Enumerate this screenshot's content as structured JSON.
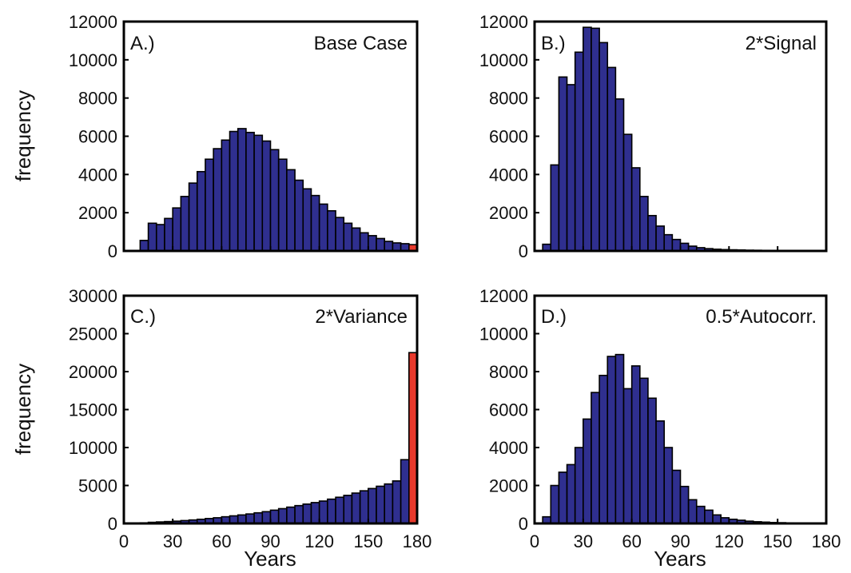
{
  "colors": {
    "bar": "#2f2f8f",
    "highlight": "#e8392c",
    "bar_edge": "#000000"
  },
  "chart_data": [
    {
      "type": "bar",
      "panel_label": "A.)",
      "title": "Base Case",
      "xlabel": "",
      "ylabel": "frequency",
      "bin_width": 5,
      "xlim": [
        0,
        180
      ],
      "ylim": [
        0,
        12000
      ],
      "yticks": [
        "0",
        "2000",
        "4000",
        "6000",
        "8000",
        "10000",
        "12000"
      ],
      "xticks": [],
      "bin_starts": [
        10,
        15,
        20,
        25,
        30,
        35,
        40,
        45,
        50,
        55,
        60,
        65,
        70,
        75,
        80,
        85,
        90,
        95,
        100,
        105,
        110,
        115,
        120,
        125,
        130,
        135,
        140,
        145,
        150,
        155,
        160,
        165,
        170,
        175
      ],
      "values": [
        550,
        1450,
        1380,
        1700,
        2250,
        2850,
        3550,
        4150,
        4800,
        5350,
        5800,
        6250,
        6400,
        6200,
        6050,
        5750,
        5300,
        4800,
        4250,
        3700,
        3250,
        2900,
        2450,
        2100,
        1750,
        1450,
        1200,
        950,
        800,
        650,
        500,
        420,
        380,
        330
      ],
      "highlight_index": 33
    },
    {
      "type": "bar",
      "panel_label": "B.)",
      "title": "2*Signal",
      "xlabel": "",
      "ylabel": "",
      "bin_width": 5,
      "xlim": [
        0,
        180
      ],
      "ylim": [
        0,
        12000
      ],
      "yticks": [
        "0",
        "2000",
        "4000",
        "6000",
        "8000",
        "10000",
        "12000"
      ],
      "xticks": [],
      "bin_starts": [
        5,
        10,
        15,
        20,
        25,
        30,
        35,
        40,
        45,
        50,
        55,
        60,
        65,
        70,
        75,
        80,
        85,
        90,
        95,
        100,
        105,
        110,
        115,
        120,
        125,
        130,
        135,
        140,
        145,
        150,
        155,
        160,
        165,
        170,
        175
      ],
      "values": [
        350,
        4500,
        9100,
        8700,
        10400,
        11700,
        11650,
        10900,
        9600,
        7950,
        6100,
        4350,
        2850,
        1850,
        1300,
        850,
        600,
        400,
        250,
        170,
        120,
        90,
        70,
        60,
        50,
        40,
        35,
        30,
        25,
        20,
        20,
        15,
        15,
        10,
        10
      ],
      "highlight_index": null
    },
    {
      "type": "bar",
      "panel_label": "C.)",
      "title": "2*Variance",
      "xlabel": "Years",
      "ylabel": "frequency",
      "bin_width": 5,
      "xlim": [
        0,
        180
      ],
      "ylim": [
        0,
        30000
      ],
      "yticks": [
        "0",
        "5000",
        "10000",
        "15000",
        "20000",
        "25000",
        "30000"
      ],
      "xticks": [
        "0",
        "30",
        "60",
        "90",
        "120",
        "150",
        "180"
      ],
      "bin_starts": [
        10,
        15,
        20,
        25,
        30,
        35,
        40,
        45,
        50,
        55,
        60,
        65,
        70,
        75,
        80,
        85,
        90,
        95,
        100,
        105,
        110,
        115,
        120,
        125,
        130,
        135,
        140,
        145,
        150,
        155,
        160,
        165,
        170,
        175
      ],
      "values": [
        80,
        150,
        200,
        250,
        300,
        380,
        460,
        550,
        650,
        750,
        880,
        1000,
        1120,
        1250,
        1400,
        1550,
        1750,
        1950,
        2150,
        2350,
        2550,
        2750,
        2950,
        3200,
        3450,
        3700,
        4000,
        4300,
        4600,
        4900,
        5200,
        5600,
        8400,
        22500
      ],
      "highlight_index": 33
    },
    {
      "type": "bar",
      "panel_label": "D.)",
      "title": "0.5*Autocorr.",
      "xlabel": "Years",
      "ylabel": "",
      "bin_width": 5,
      "xlim": [
        0,
        180
      ],
      "ylim": [
        0,
        12000
      ],
      "yticks": [
        "0",
        "2000",
        "4000",
        "6000",
        "8000",
        "10000",
        "12000"
      ],
      "xticks": [
        "0",
        "30",
        "60",
        "90",
        "120",
        "150",
        "180"
      ],
      "bin_starts": [
        5,
        10,
        15,
        20,
        25,
        30,
        35,
        40,
        45,
        50,
        55,
        60,
        65,
        70,
        75,
        80,
        85,
        90,
        95,
        100,
        105,
        110,
        115,
        120,
        125,
        130,
        135,
        140,
        145,
        150,
        155,
        160,
        165,
        170,
        175
      ],
      "values": [
        350,
        2000,
        2700,
        3100,
        4000,
        5500,
        6900,
        7800,
        8800,
        8900,
        7100,
        8300,
        7650,
        6600,
        5400,
        4000,
        2800,
        1950,
        1250,
        900,
        700,
        450,
        300,
        220,
        170,
        120,
        90,
        70,
        50,
        40,
        30,
        25,
        20,
        15,
        10
      ],
      "highlight_index": null
    }
  ]
}
